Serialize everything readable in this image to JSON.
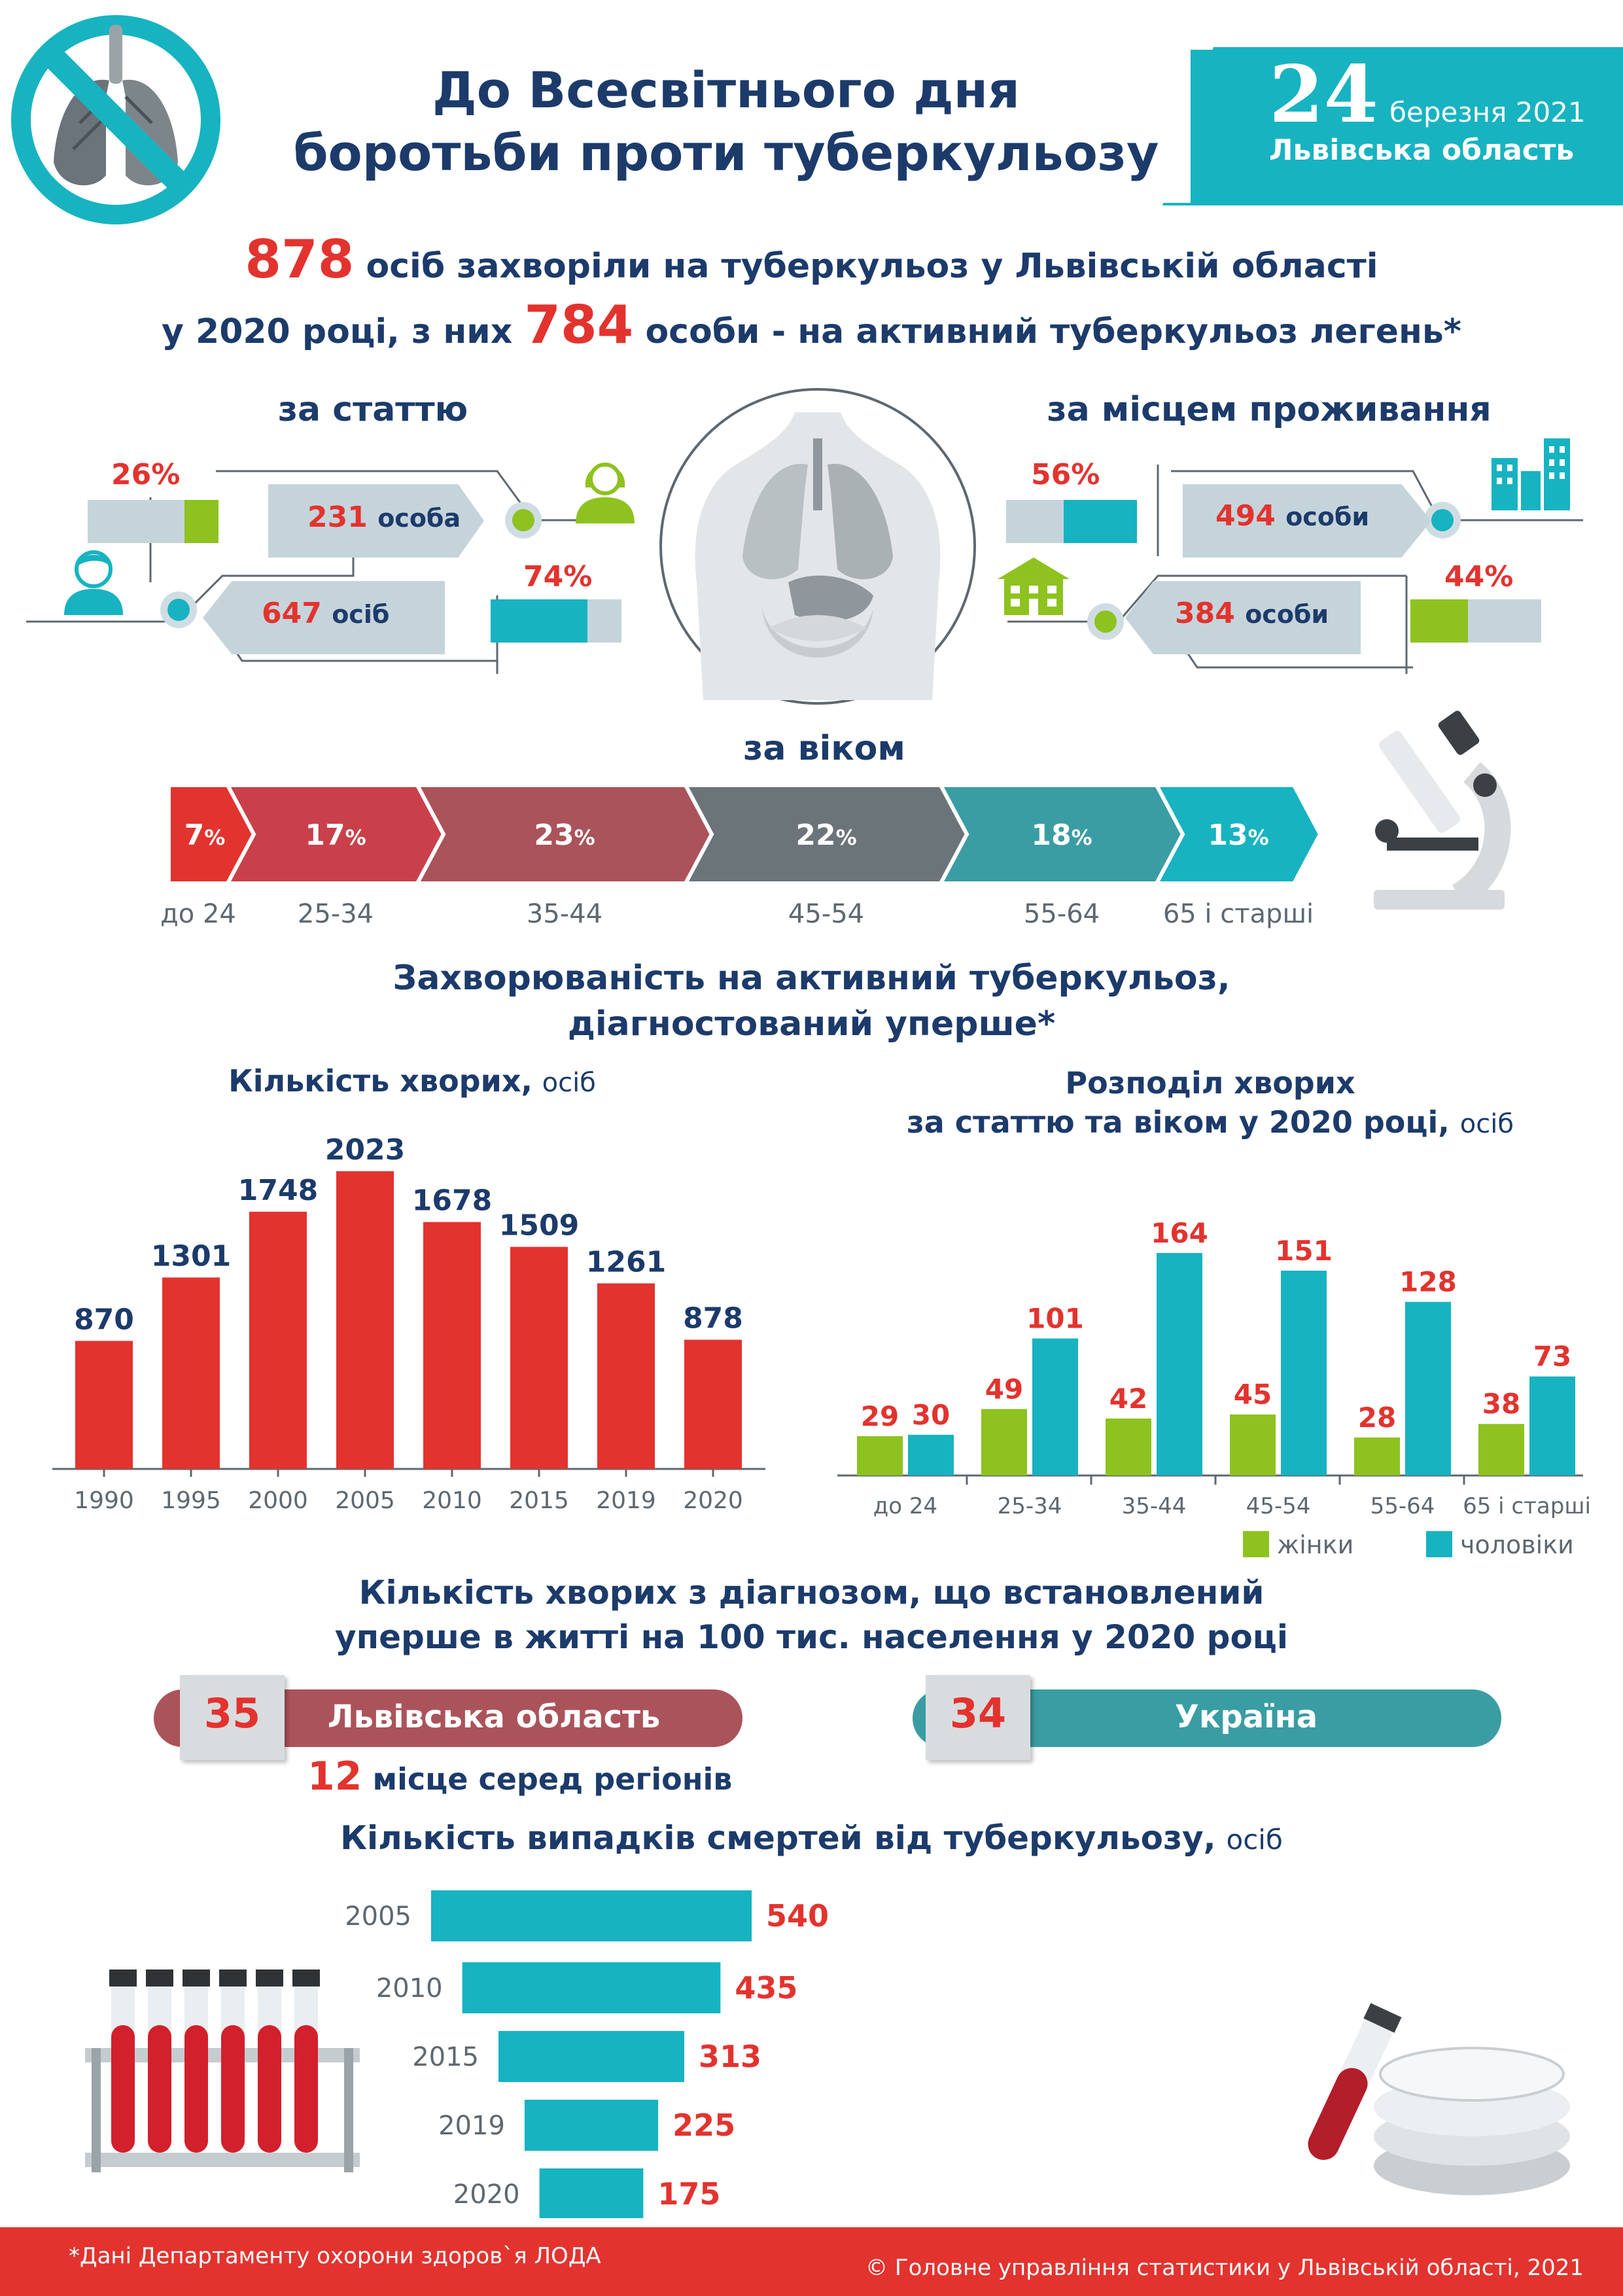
{
  "header": {
    "title_line1": "До Всесвітнього дня",
    "title_line2": "боротьби проти туберкульозу",
    "day": "24",
    "month_year": "березня 2021",
    "region": "Львівська область"
  },
  "intro": {
    "total": "878",
    "line1_rest": " осіб захворіли на туберкульоз у Львівській області",
    "line2_prefix": "у 2020 році, з них ",
    "active": "784",
    "line2_rest": " особи - на активний туберкульоз легень*"
  },
  "by_sex": {
    "title": "за статтю",
    "female_pct": "26%",
    "female_value": 26,
    "female_count": "231",
    "female_unit": "особа",
    "male_pct": "74%",
    "male_value": 74,
    "male_count": "647",
    "male_unit": "осіб"
  },
  "by_residence": {
    "title": "за місцем проживання",
    "urban_pct": "56%",
    "urban_value": 56,
    "urban_count": "494",
    "urban_unit": "особи",
    "rural_pct": "44%",
    "rural_value": 44,
    "rural_count": "384",
    "rural_unit": "особи"
  },
  "by_age": {
    "title": "за віком",
    "segments": [
      {
        "pct": "7",
        "label": "до 24",
        "color": "#e3332e"
      },
      {
        "pct": "17",
        "label": "25-34",
        "color": "#c9404a"
      },
      {
        "pct": "23",
        "label": "35-44",
        "color": "#ab535a"
      },
      {
        "pct": "22",
        "label": "45-54",
        "color": "#6b7479"
      },
      {
        "pct": "18",
        "label": "55-64",
        "color": "#3a9da3"
      },
      {
        "pct": "13",
        "label": "65 і старші",
        "color": "#17b3c1"
      }
    ]
  },
  "incidence": {
    "heading_line1": "Захворюваність на активний туберкульоз,",
    "heading_line2": "діагностований уперше*"
  },
  "chart_data": [
    {
      "type": "bar",
      "title": "Кількість хворих,",
      "unit": "осіб",
      "categories": [
        "1990",
        "1995",
        "2000",
        "2005",
        "2010",
        "2015",
        "2019",
        "2020"
      ],
      "values": [
        870,
        1301,
        1748,
        2023,
        1678,
        1509,
        1261,
        878
      ],
      "color": "#e3332e"
    },
    {
      "type": "bar",
      "title_line1": "Розподіл хворих",
      "title_line2": "за статтю та віком у 2020 році,",
      "unit": "осіб",
      "categories": [
        "до 24",
        "25-34",
        "35-44",
        "45-54",
        "55-64",
        "65 і старші"
      ],
      "series": [
        {
          "name": "жінки",
          "values": [
            29,
            49,
            42,
            45,
            28,
            38
          ],
          "color": "#8ec21f"
        },
        {
          "name": "чоловіки",
          "values": [
            30,
            101,
            164,
            151,
            128,
            73
          ],
          "color": "#17b3c1"
        }
      ],
      "legend": "bottom-right"
    },
    {
      "type": "bar",
      "orientation": "horizontal",
      "title": "Кількість випадків смертей від туберкульозу,",
      "unit": "осіб",
      "categories": [
        "2005",
        "2010",
        "2015",
        "2019",
        "2020"
      ],
      "values": [
        540,
        435,
        313,
        225,
        175
      ],
      "color": "#17b3c1"
    }
  ],
  "per100k": {
    "heading_line1": "Кількість хворих з діагнозом, що встановлений",
    "heading_line2": "уперше в житті на 100 тис. населення у 2020 році",
    "lviv_value": "35",
    "lviv_label": "Львівська область",
    "ukraine_value": "34",
    "ukraine_label": "Україна",
    "rank": "12",
    "rank_text": " місце серед регіонів"
  },
  "footer": {
    "note": "*Дані Департаменту охорони здоров`я ЛОДА",
    "copyright": "© Головне управління статистики у Львівській області, 2021"
  },
  "colors": {
    "teal": "#17b3c1",
    "red": "#e3332e",
    "navy": "#1c3b6b",
    "green": "#8ec21f",
    "grey_bar": "#c5d4db"
  }
}
